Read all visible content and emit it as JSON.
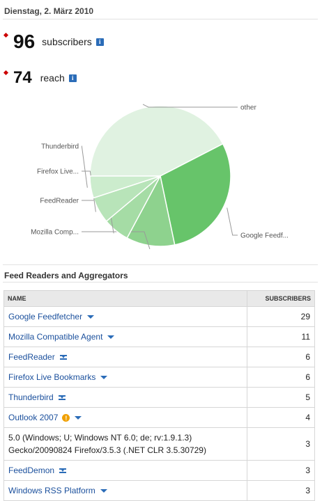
{
  "header": {
    "date": "Dienstag, 2. März 2010"
  },
  "stats": {
    "subscribers": {
      "value": "96",
      "label": "subscribers",
      "info": "i"
    },
    "reach": {
      "value": "74",
      "label": "reach",
      "info": "i"
    }
  },
  "chart_data": {
    "type": "pie",
    "categories": [
      "other",
      "Google Feedf...",
      "Mozilla Comp...",
      "FeedReader",
      "Firefox Live...",
      "Thunderbird"
    ],
    "values": [
      42,
      29,
      11,
      6,
      6,
      5
    ],
    "colors": [
      "#e0f2e1",
      "#67c46a",
      "#8ed28e",
      "#a5dca5",
      "#b8e4b9",
      "#cceccd"
    ]
  },
  "section": {
    "title": "Feed Readers and Aggregators"
  },
  "table": {
    "headers": {
      "name": "NAME",
      "subscribers": "SUBSCRIBERS"
    },
    "rows": [
      {
        "name": "Google Feedfetcher",
        "value": "29",
        "control": "arrow"
      },
      {
        "name": "Mozilla Compatible Agent",
        "value": "11",
        "control": "arrow"
      },
      {
        "name": "FeedReader",
        "value": "6",
        "control": "bars"
      },
      {
        "name": "Firefox Live Bookmarks",
        "value": "6",
        "control": "arrow"
      },
      {
        "name": "Thunderbird",
        "value": "5",
        "control": "bars"
      },
      {
        "name": "Outlook 2007",
        "value": "4",
        "control": "arrow",
        "warn": "!"
      },
      {
        "name": "5.0 (Windows; U; Windows NT 6.0; de; rv:1.9.1.3) Gecko/20090824 Firefox/3.5.3 (.NET CLR 3.5.30729)",
        "value": "3",
        "control": "none"
      },
      {
        "name": "FeedDemon",
        "value": "3",
        "control": "bars"
      },
      {
        "name": "Windows RSS Platform",
        "value": "3",
        "control": "arrow"
      }
    ]
  }
}
